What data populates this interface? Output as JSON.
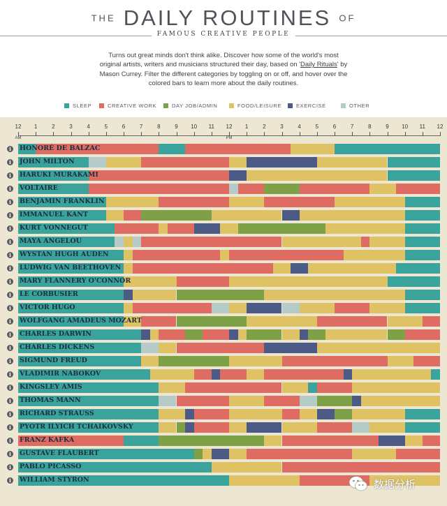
{
  "header": {
    "title_prefix": "THE",
    "title_main": "DAILY ROUTINES",
    "title_suffix": "OF",
    "subtitle": "FAMOUS CREATIVE PEOPLE",
    "intro_part1": "Turns out great minds don't think alike. Discover how some of the world's most original artists, writers and musicians structured their day, based on '",
    "intro_link": "Daily Rituals",
    "intro_part2": "' by Mason Currey. Filter the different categories by toggling on or off, and hover over the colored bars to learn more about the daily routines."
  },
  "legend": [
    {
      "label": "SLEEP",
      "color": "#3aa39b"
    },
    {
      "label": "CREATIVE WORK",
      "color": "#df6c62"
    },
    {
      "label": "DAY JOB/ADMIN",
      "color": "#7ea047"
    },
    {
      "label": "FOOD/LEISURE",
      "color": "#dfc264"
    },
    {
      "label": "EXERCISE",
      "color": "#4c5a86"
    },
    {
      "label": "OTHER",
      "color": "#b5cbc8"
    }
  ],
  "info_icon": "i",
  "watermark": {
    "text": "数据分析",
    "icon": "wechat-icon"
  },
  "chart_data": {
    "type": "timeline",
    "x_unit": "hour of day",
    "xlim": [
      0,
      24
    ],
    "ticks": [
      "12",
      "1",
      "2",
      "3",
      "4",
      "5",
      "6",
      "7",
      "8",
      "9",
      "10",
      "11",
      "12",
      "1",
      "2",
      "3",
      "4",
      "5",
      "6",
      "7",
      "8",
      "9",
      "10",
      "11",
      "12"
    ],
    "tick_marks": {
      "0": "AM",
      "12": "PM"
    },
    "colors": {
      "S": "#3aa39b",
      "C": "#df6c62",
      "D": "#7ea047",
      "F": "#dfc264",
      "E": "#4c5a86",
      "O": "#b5cbc8"
    },
    "categories": {
      "S": "SLEEP",
      "C": "CREATIVE WORK",
      "D": "DAY JOB/ADMIN",
      "F": "FOOD/LEISURE",
      "E": "EXERCISE",
      "O": "OTHER"
    },
    "rows": [
      {
        "name": "HONORÉ DE BALZAC",
        "segments": [
          [
            "S",
            0,
            1
          ],
          [
            "C",
            1,
            8
          ],
          [
            "S",
            8,
            9.5
          ],
          [
            "C",
            9.5,
            15.5
          ],
          [
            "F",
            15.5,
            18
          ],
          [
            "S",
            18,
            24
          ]
        ]
      },
      {
        "name": "JOHN MILTON",
        "segments": [
          [
            "S",
            0,
            4
          ],
          [
            "O",
            4,
            5
          ],
          [
            "F",
            5,
            7
          ],
          [
            "C",
            7,
            12
          ],
          [
            "F",
            12,
            13
          ],
          [
            "E",
            13,
            17
          ],
          [
            "F",
            17,
            21
          ],
          [
            "S",
            21,
            24
          ]
        ]
      },
      {
        "name": "HARUKI MURAKAMI",
        "segments": [
          [
            "S",
            0,
            4
          ],
          [
            "C",
            4,
            12
          ],
          [
            "E",
            12,
            13
          ],
          [
            "F",
            13,
            21
          ],
          [
            "S",
            21,
            24
          ]
        ]
      },
      {
        "name": "VOLTAIRE",
        "segments": [
          [
            "S",
            0,
            4
          ],
          [
            "C",
            4,
            12
          ],
          [
            "O",
            12,
            12.5
          ],
          [
            "C",
            12.5,
            14
          ],
          [
            "D",
            14,
            16
          ],
          [
            "C",
            16,
            20
          ],
          [
            "F",
            20,
            21.5
          ],
          [
            "C",
            21.5,
            24
          ]
        ]
      },
      {
        "name": "BENJAMIN FRANKLIN",
        "segments": [
          [
            "S",
            0,
            5
          ],
          [
            "F",
            5,
            8
          ],
          [
            "C",
            8,
            12
          ],
          [
            "F",
            12,
            14
          ],
          [
            "C",
            14,
            18
          ],
          [
            "F",
            18,
            22
          ],
          [
            "S",
            22,
            24
          ]
        ]
      },
      {
        "name": "IMMANUEL KANT",
        "segments": [
          [
            "S",
            0,
            5
          ],
          [
            "F",
            5,
            6
          ],
          [
            "C",
            6,
            7
          ],
          [
            "D",
            7,
            11
          ],
          [
            "F",
            11,
            15
          ],
          [
            "E",
            15,
            16
          ],
          [
            "F",
            16,
            22
          ],
          [
            "S",
            22,
            24
          ]
        ]
      },
      {
        "name": "KURT VONNEGUT",
        "segments": [
          [
            "S",
            0,
            5.5
          ],
          [
            "C",
            5.5,
            8
          ],
          [
            "F",
            8,
            8.5
          ],
          [
            "C",
            8.5,
            10
          ],
          [
            "E",
            10,
            11.5
          ],
          [
            "F",
            11.5,
            12.5
          ],
          [
            "D",
            12.5,
            17.5
          ],
          [
            "F",
            17.5,
            22
          ],
          [
            "S",
            22,
            24
          ]
        ]
      },
      {
        "name": "MAYA ANGELOU",
        "segments": [
          [
            "S",
            0,
            5.5
          ],
          [
            "O",
            5.5,
            6
          ],
          [
            "F",
            6,
            6.5
          ],
          [
            "O",
            6.5,
            7
          ],
          [
            "C",
            7,
            15
          ],
          [
            "F",
            15,
            19.5
          ],
          [
            "C",
            19.5,
            20
          ],
          [
            "F",
            20,
            22
          ],
          [
            "S",
            22,
            24
          ]
        ]
      },
      {
        "name": "WYSTAN HUGH AUDEN",
        "segments": [
          [
            "S",
            0,
            6
          ],
          [
            "F",
            6,
            6.5
          ],
          [
            "C",
            6.5,
            11.5
          ],
          [
            "F",
            11.5,
            12
          ],
          [
            "C",
            12,
            18.5
          ],
          [
            "F",
            18.5,
            22
          ],
          [
            "S",
            22,
            24
          ]
        ]
      },
      {
        "name": "LUDWIG VAN BEETHOVEN",
        "segments": [
          [
            "S",
            0,
            6
          ],
          [
            "F",
            6,
            6.5
          ],
          [
            "C",
            6.5,
            14.5
          ],
          [
            "F",
            14.5,
            15.5
          ],
          [
            "E",
            15.5,
            16.5
          ],
          [
            "F",
            16.5,
            21.5
          ],
          [
            "S",
            21.5,
            24
          ]
        ]
      },
      {
        "name": "MARY FLANNERY O'CONNOR",
        "segments": [
          [
            "S",
            0,
            6
          ],
          [
            "F",
            6,
            9
          ],
          [
            "C",
            9,
            12
          ],
          [
            "F",
            12,
            21
          ],
          [
            "S",
            21,
            24
          ]
        ]
      },
      {
        "name": "LE CORBUSIER",
        "segments": [
          [
            "S",
            0,
            6
          ],
          [
            "E",
            6,
            6.5
          ],
          [
            "F",
            6.5,
            9
          ],
          [
            "D",
            9,
            14
          ],
          [
            "F",
            14,
            22
          ],
          [
            "S",
            22,
            24
          ]
        ]
      },
      {
        "name": "VICTOR HUGO",
        "segments": [
          [
            "S",
            0,
            6
          ],
          [
            "F",
            6,
            6.5
          ],
          [
            "C",
            6.5,
            11
          ],
          [
            "O",
            11,
            12
          ],
          [
            "F",
            12,
            13
          ],
          [
            "E",
            13,
            15
          ],
          [
            "O",
            15,
            16
          ],
          [
            "F",
            16,
            18
          ],
          [
            "C",
            18,
            20
          ],
          [
            "F",
            20,
            22
          ],
          [
            "S",
            22,
            24
          ]
        ]
      },
      {
        "name": "WOLFGANG AMADEUS MOZART",
        "segments": [
          [
            "S",
            0,
            6
          ],
          [
            "F",
            6,
            7
          ],
          [
            "C",
            7,
            9
          ],
          [
            "D",
            9,
            13
          ],
          [
            "F",
            13,
            17
          ],
          [
            "C",
            17,
            21
          ],
          [
            "F",
            21,
            23
          ],
          [
            "C",
            23,
            24
          ]
        ]
      },
      {
        "name": "CHARLES DARWIN",
        "segments": [
          [
            "S",
            0,
            7
          ],
          [
            "E",
            7,
            7.5
          ],
          [
            "F",
            7.5,
            8
          ],
          [
            "C",
            8,
            9.5
          ],
          [
            "D",
            9.5,
            10.5
          ],
          [
            "C",
            10.5,
            12
          ],
          [
            "E",
            12,
            12.5
          ],
          [
            "F",
            12.5,
            13
          ],
          [
            "D",
            13,
            15
          ],
          [
            "F",
            15,
            16
          ],
          [
            "E",
            16,
            16.5
          ],
          [
            "D",
            16.5,
            17.5
          ],
          [
            "F",
            17.5,
            21
          ],
          [
            "D",
            21,
            22
          ],
          [
            "C",
            22,
            24
          ]
        ]
      },
      {
        "name": "CHARLES DICKENS",
        "segments": [
          [
            "S",
            0,
            7
          ],
          [
            "O",
            7,
            8
          ],
          [
            "F",
            8,
            9
          ],
          [
            "C",
            9,
            14
          ],
          [
            "E",
            14,
            17
          ],
          [
            "F",
            17,
            24
          ]
        ]
      },
      {
        "name": "SIGMUND FREUD",
        "segments": [
          [
            "S",
            0,
            7
          ],
          [
            "F",
            7,
            8
          ],
          [
            "D",
            8,
            12
          ],
          [
            "F",
            12,
            15
          ],
          [
            "C",
            15,
            21
          ],
          [
            "F",
            21,
            22.5
          ],
          [
            "C",
            22.5,
            24
          ]
        ]
      },
      {
        "name": "VLADIMIR NABOKOV",
        "segments": [
          [
            "S",
            0,
            7.5
          ],
          [
            "F",
            7.5,
            10
          ],
          [
            "C",
            10,
            11
          ],
          [
            "E",
            11,
            11.5
          ],
          [
            "C",
            11.5,
            13
          ],
          [
            "F",
            13,
            14
          ],
          [
            "C",
            14,
            18.5
          ],
          [
            "E",
            18.5,
            19
          ],
          [
            "F",
            19,
            23.5
          ],
          [
            "S",
            23.5,
            24
          ]
        ]
      },
      {
        "name": "KINGSLEY AMIS",
        "segments": [
          [
            "S",
            0,
            8
          ],
          [
            "F",
            8,
            9.5
          ],
          [
            "C",
            9.5,
            15
          ],
          [
            "F",
            15,
            16.5
          ],
          [
            "S",
            16.5,
            17
          ],
          [
            "C",
            17,
            19
          ],
          [
            "F",
            19,
            24
          ]
        ]
      },
      {
        "name": "THOMAS MANN",
        "segments": [
          [
            "S",
            0,
            8
          ],
          [
            "O",
            8,
            9
          ],
          [
            "C",
            9,
            12
          ],
          [
            "F",
            12,
            14
          ],
          [
            "C",
            14,
            16
          ],
          [
            "O",
            16,
            17
          ],
          [
            "D",
            17,
            19
          ],
          [
            "E",
            19,
            19.5
          ],
          [
            "F",
            19.5,
            24
          ]
        ]
      },
      {
        "name": "RICHARD STRAUSS",
        "segments": [
          [
            "S",
            0,
            8
          ],
          [
            "F",
            8,
            9.5
          ],
          [
            "E",
            9.5,
            10
          ],
          [
            "C",
            10,
            12
          ],
          [
            "F",
            12,
            15
          ],
          [
            "C",
            15,
            16
          ],
          [
            "F",
            16,
            17
          ],
          [
            "E",
            17,
            18
          ],
          [
            "D",
            18,
            19
          ],
          [
            "F",
            19,
            22
          ],
          [
            "S",
            22,
            24
          ]
        ]
      },
      {
        "name": "PYOTR ILYICH TCHAIKOVSKY",
        "segments": [
          [
            "S",
            0,
            8
          ],
          [
            "F",
            8,
            9
          ],
          [
            "D",
            9,
            9.5
          ],
          [
            "E",
            9.5,
            10
          ],
          [
            "C",
            10,
            12
          ],
          [
            "F",
            12,
            13
          ],
          [
            "E",
            13,
            15
          ],
          [
            "F",
            15,
            17
          ],
          [
            "C",
            17,
            19
          ],
          [
            "O",
            19,
            20
          ],
          [
            "F",
            20,
            22
          ],
          [
            "S",
            22,
            24
          ]
        ]
      },
      {
        "name": "FRANZ KAFKA",
        "segments": [
          [
            "C",
            0,
            6
          ],
          [
            "S",
            6,
            8
          ],
          [
            "D",
            8,
            14
          ],
          [
            "F",
            14,
            15
          ],
          [
            "C",
            15,
            20.5
          ],
          [
            "E",
            20.5,
            22
          ],
          [
            "F",
            22,
            23
          ],
          [
            "C",
            23,
            24
          ]
        ]
      },
      {
        "name": "GUSTAVE FLAUBERT",
        "segments": [
          [
            "S",
            0,
            10
          ],
          [
            "D",
            10,
            10.5
          ],
          [
            "F",
            10.5,
            11
          ],
          [
            "E",
            11,
            12
          ],
          [
            "F",
            12,
            13
          ],
          [
            "C",
            13,
            19
          ],
          [
            "F",
            19,
            21.5
          ],
          [
            "C",
            21.5,
            24
          ]
        ]
      },
      {
        "name": "PABLO PICASSO",
        "segments": [
          [
            "S",
            0,
            11
          ],
          [
            "F",
            11,
            15
          ],
          [
            "C",
            15,
            24
          ]
        ]
      },
      {
        "name": "WILLIAM STYRON",
        "segments": [
          [
            "S",
            0,
            12
          ],
          [
            "F",
            12,
            16
          ],
          [
            "C",
            16,
            20
          ],
          [
            "F",
            20,
            24
          ]
        ]
      }
    ]
  }
}
